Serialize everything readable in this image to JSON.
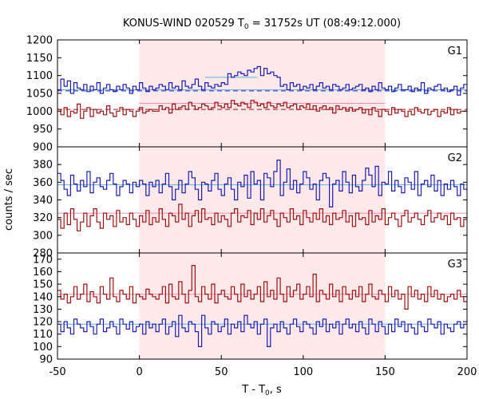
{
  "chart_data": {
    "type": "line",
    "title": "KONUS-WIND 020529 T",
    "title_sub": "0",
    "title_rest": " = 31752s UT (08:49:12.000)",
    "xlabel": "T - T",
    "xlabel_sub": "0",
    "xlabel_rest": ", s",
    "ylabel": "counts / sec",
    "xlim": [
      -50,
      200
    ],
    "xticks": [
      -50,
      0,
      50,
      100,
      150,
      200
    ],
    "highlight_interval": [
      0,
      150
    ],
    "colors": {
      "highlight": "#fde8ea",
      "blue_series": "#1c1cb4",
      "red_series": "#a01010",
      "blue_background": "#5ab4e6",
      "red_background": "#f08cb4",
      "red_background_g1": "#a01010",
      "blue_background_g1": "#1c1cb4"
    },
    "panels": [
      {
        "label": "G1",
        "ylim": [
          900,
          1200
        ],
        "yticks": [
          900,
          950,
          1000,
          1050,
          1100,
          1150,
          1200
        ],
        "series": [
          {
            "color_key": "blue_series",
            "x_start": -50,
            "bin": 2,
            "values": [
              1060,
              1090,
              1070,
              1085,
              1050,
              1080,
              1065,
              1060,
              1075,
              1055,
              1070,
              1060,
              1080,
              1050,
              1065,
              1075,
              1060,
              1055,
              1070,
              1060,
              1075,
              1065,
              1050,
              1070,
              1060,
              1080,
              1065,
              1055,
              1070,
              1060,
              1065,
              1075,
              1070,
              1060,
              1080,
              1065,
              1070,
              1060,
              1085,
              1070,
              1065,
              1075,
              1090,
              1070,
              1060,
              1080,
              1070,
              1065,
              1075,
              1070,
              1080,
              1075,
              1105,
              1095,
              1100,
              1110,
              1105,
              1100,
              1115,
              1110,
              1120,
              1125,
              1100,
              1120,
              1105,
              1110,
              1100,
              1095,
              1070,
              1075,
              1060,
              1080,
              1070,
              1075,
              1060,
              1070,
              1065,
              1075,
              1060,
              1070,
              1080,
              1065,
              1070,
              1060,
              1075,
              1070,
              1060,
              1065,
              1075,
              1060,
              1065,
              1070,
              1075,
              1060,
              1065,
              1055,
              1070,
              1060,
              1080,
              1065,
              1060,
              1070,
              1055,
              1065,
              1075,
              1060,
              1060,
              1070,
              1055,
              1065,
              1060,
              1080,
              1050,
              1065,
              1060,
              1070,
              1075,
              1060,
              1065,
              1055,
              1060,
              1070,
              1045,
              1065,
              1075
            ]
          },
          {
            "color_key": "red_series",
            "x_start": -50,
            "bin": 2,
            "values": [
              1005,
              990,
              1010,
              985,
              1000,
              995,
              1020,
              980,
              1000,
              1010,
              985,
              1005,
              995,
              1000,
              990,
              1015,
              995,
              985,
              1000,
              1010,
              990,
              1005,
              1000,
              985,
              1000,
              1010,
              995,
              1000,
              1005,
              1000,
              1000,
              1015,
              1005,
              1010,
              995,
              1020,
              1005,
              1010,
              1015,
              1005,
              1025,
              1015,
              1005,
              1010,
              1020,
              1015,
              1005,
              1010,
              1025,
              1015,
              1010,
              1020,
              1010,
              1030,
              1020,
              1015,
              1025,
              1020,
              1010,
              1030,
              1025,
              1015,
              1020,
              1010,
              1025,
              1015,
              1010,
              1020,
              1015,
              1025,
              1010,
              1015,
              1020,
              1005,
              1015,
              1010,
              1020,
              1005,
              1015,
              1000,
              1010,
              1015,
              1005,
              1010,
              995,
              1015,
              1005,
              1010,
              1000,
              1010,
              1000,
              1005,
              1010,
              995,
              1005,
              990,
              1010,
              1000,
              985,
              1005,
              1000,
              990,
              1010,
              995,
              1005,
              1000,
              985,
              1000,
              990,
              1010,
              1000,
              995,
              1005,
              990,
              1000,
              1005,
              985,
              1000,
              995,
              1010,
              990,
              1005,
              995,
              1000,
              1000
            ]
          }
        ],
        "backgrounds": [
          {
            "color_key": "blue_background_g1",
            "dashed": true,
            "y": 1057,
            "x_range": [
              -50,
              200
            ]
          },
          {
            "color_key": "red_background_g1",
            "dashed": true,
            "y": 1005,
            "x_range": [
              -50,
              200
            ]
          },
          {
            "color_key": "blue_background",
            "dashed": false,
            "y": 1060,
            "x_range": [
              -50,
              200
            ]
          },
          {
            "color_key": "red_background",
            "dashed": false,
            "y": 1022,
            "x_range": [
              0,
              150
            ]
          },
          {
            "color_key": "blue_background",
            "dashed": false,
            "y": 1095,
            "x_range": [
              40,
              72
            ]
          }
        ]
      },
      {
        "label": "G2",
        "ylim": [
          280,
          400
        ],
        "yticks": [
          280,
          300,
          320,
          340,
          360,
          380
        ],
        "series": [
          {
            "color_key": "blue_series",
            "x_start": -50,
            "bin": 2,
            "values": [
              370,
              362,
              352,
              345,
              368,
              358,
              350,
              362,
              355,
              372,
              348,
              360,
              365,
              355,
              352,
              362,
              370,
              358,
              345,
              355,
              362,
              358,
              348,
              360,
              355,
              362,
              358,
              345,
              360,
              355,
              362,
              348,
              358,
              370,
              355,
              340,
              352,
              362,
              348,
              358,
              372,
              365,
              352,
              340,
              360,
              358,
              350,
              362,
              370,
              352,
              345,
              358,
              365,
              352,
              340,
              360,
              355,
              368,
              342,
              372,
              358,
              362,
              340,
              370,
              365,
              355,
              372,
              385,
              345,
              360,
              375,
              352,
              362,
              348,
              358,
              372,
              365,
              352,
              358,
              340,
              362,
              370,
              365,
              332,
              358,
              362,
              350,
              372,
              360,
              348,
              368,
              355,
              350,
              362,
              376,
              368,
              355,
              378,
              345,
              360,
              358,
              372,
              350,
              362,
              355,
              348,
              365,
              360,
              352,
              372,
              345,
              358,
              362,
              355,
              368,
              350,
              362,
              345,
              358,
              352,
              362,
              355,
              345,
              358,
              352
            ]
          },
          {
            "color_key": "red_series",
            "x_start": -50,
            "bin": 2,
            "values": [
              318,
              308,
              325,
              312,
              330,
              318,
              305,
              315,
              325,
              310,
              322,
              330,
              315,
              308,
              325,
              318,
              322,
              310,
              328,
              315,
              320,
              312,
              325,
              318,
              310,
              322,
              315,
              328,
              312,
              320,
              315,
              330,
              318,
              310,
              325,
              322,
              315,
              335,
              318,
              325,
              310,
              322,
              328,
              315,
              330,
              318,
              320,
              312,
              325,
              315,
              322,
              318,
              310,
              325,
              330,
              315,
              322,
              320,
              328,
              312,
              325,
              318,
              330,
              315,
              322,
              328,
              318,
              310,
              325,
              320,
              315,
              330,
              318,
              322,
              312,
              328,
              320,
              315,
              325,
              318,
              330,
              315,
              322,
              312,
              325,
              318,
              320,
              328,
              315,
              322,
              310,
              325,
              318,
              320,
              312,
              328,
              315,
              322,
              318,
              330,
              312,
              320,
              325,
              318,
              310,
              322,
              328,
              315,
              320,
              325,
              318,
              312,
              322,
              328,
              315,
              320,
              325,
              318,
              322,
              312,
              325,
              318,
              320,
              310,
              318
            ]
          }
        ],
        "backgrounds": [
          {
            "color_key": "blue_background",
            "dashed": false,
            "y": 357,
            "x_range": [
              -50,
              200
            ]
          },
          {
            "color_key": "red_background",
            "dashed": false,
            "y": 325,
            "x_range": [
              -50,
              200
            ]
          }
        ]
      },
      {
        "label": "G3",
        "ylim": [
          90,
          175
        ],
        "yticks": [
          90,
          100,
          110,
          120,
          130,
          140,
          150,
          160,
          170
        ],
        "series": [
          {
            "color_key": "blue_series",
            "x_start": -50,
            "bin": 2,
            "values": [
              118,
              112,
              120,
              115,
              110,
              122,
              118,
              115,
              112,
              120,
              116,
              110,
              118,
              122,
              112,
              115,
              120,
              116,
              110,
              122,
              118,
              114,
              120,
              112,
              116,
              118,
              110,
              120,
              115,
              118,
              112,
              118,
              122,
              110,
              116,
              120,
              108,
              125,
              115,
              112,
              120,
              118,
              112,
              100,
              125,
              115,
              110,
              120,
              118,
              112,
              116,
              122,
              110,
              118,
              115,
              120,
              112,
              125,
              118,
              115,
              120,
              110,
              118,
              122,
              100,
              115,
              118,
              112,
              120,
              115,
              110,
              118,
              122,
              116,
              112,
              120,
              118,
              115,
              110,
              120,
              116,
              122,
              112,
              118,
              115,
              120,
              110,
              118,
              122,
              115,
              118,
              112,
              120,
              115,
              110,
              122,
              118,
              112,
              120,
              116,
              110,
              118,
              112,
              122,
              116,
              120,
              112,
              118,
              115,
              110,
              120,
              116,
              112,
              122,
              118,
              115,
              120,
              110,
              118,
              115,
              112,
              118,
              120,
              115,
              118
            ]
          },
          {
            "color_key": "red_series",
            "x_start": -50,
            "bin": 2,
            "values": [
              145,
              138,
              142,
              135,
              140,
              148,
              138,
              142,
              150,
              136,
              144,
              140,
              135,
              148,
              142,
              138,
              155,
              140,
              136,
              145,
              142,
              138,
              148,
              135,
              142,
              140,
              138,
              146,
              142,
              140,
              138,
              142,
              148,
              135,
              150,
              140,
              138,
              152,
              142,
              135,
              145,
              165,
              140,
              136,
              148,
              142,
              138,
              150,
              135,
              142,
              145,
              140,
              138,
              148,
              142,
              136,
              150,
              140,
              145,
              138,
              142,
              148,
              136,
              152,
              140,
              145,
              138,
              155,
              142,
              136,
              148,
              140,
              145,
              150,
              138,
              142,
              148,
              140,
              158,
              136,
              145,
              142,
              138,
              150,
              140,
              145,
              136,
              148,
              142,
              138,
              145,
              140,
              148,
              136,
              142,
              150,
              140,
              138,
              145,
              142,
              136,
              148,
              140,
              145,
              138,
              142,
              130,
              148,
              140,
              145,
              138,
              142,
              136,
              148,
              140,
              145,
              138,
              142,
              136,
              140,
              142,
              138,
              145,
              140,
              136
            ]
          }
        ],
        "backgrounds": [
          {
            "color_key": "red_background",
            "dashed": false,
            "y": 142,
            "x_range": [
              -50,
              200
            ]
          },
          {
            "color_key": "blue_background",
            "dashed": false,
            "y": 118,
            "x_range": [
              -50,
              200
            ]
          }
        ]
      }
    ]
  }
}
